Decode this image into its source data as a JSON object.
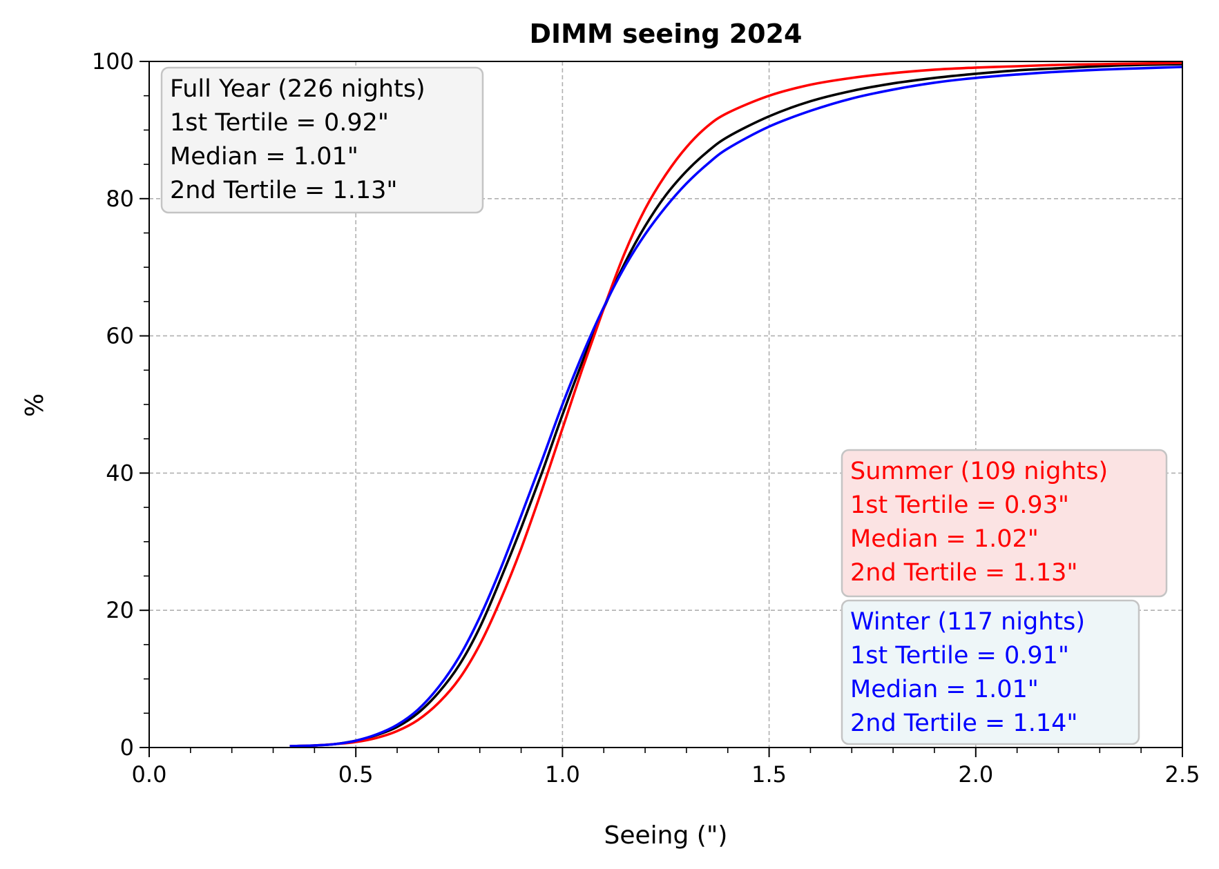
{
  "chart_data": {
    "type": "line",
    "title": "DIMM seeing 2024",
    "xlabel": "Seeing (\")",
    "ylabel": "%",
    "xlim": [
      0.0,
      2.5
    ],
    "ylim": [
      0,
      100
    ],
    "x_ticks": [
      "0.0",
      "0.5",
      "1.0",
      "1.5",
      "2.0",
      "2.5"
    ],
    "y_ticks": [
      "0",
      "20",
      "40",
      "60",
      "80",
      "100"
    ],
    "grid": true,
    "series": [
      {
        "key": "full_year",
        "color": "#000000",
        "points": [
          [
            0.34,
            0.2
          ],
          [
            0.4,
            0.3
          ],
          [
            0.45,
            0.5
          ],
          [
            0.5,
            1.0
          ],
          [
            0.55,
            1.8
          ],
          [
            0.6,
            3.0
          ],
          [
            0.65,
            5.0
          ],
          [
            0.7,
            8.0
          ],
          [
            0.75,
            12.0
          ],
          [
            0.8,
            17.5
          ],
          [
            0.85,
            24.5
          ],
          [
            0.9,
            32.0
          ],
          [
            0.95,
            40.0
          ],
          [
            1.0,
            48.5
          ],
          [
            1.05,
            56.5
          ],
          [
            1.1,
            64.0
          ],
          [
            1.15,
            70.5
          ],
          [
            1.2,
            76.0
          ],
          [
            1.25,
            80.5
          ],
          [
            1.3,
            84.0
          ],
          [
            1.35,
            86.8
          ],
          [
            1.4,
            89.0
          ],
          [
            1.5,
            92.0
          ],
          [
            1.6,
            94.2
          ],
          [
            1.7,
            95.7
          ],
          [
            1.8,
            96.8
          ],
          [
            1.9,
            97.6
          ],
          [
            2.0,
            98.2
          ],
          [
            2.1,
            98.7
          ],
          [
            2.2,
            99.0
          ],
          [
            2.3,
            99.3
          ],
          [
            2.4,
            99.5
          ],
          [
            2.5,
            99.6
          ]
        ]
      },
      {
        "key": "summer",
        "color": "#ff0000",
        "points": [
          [
            0.34,
            0.2
          ],
          [
            0.4,
            0.3
          ],
          [
            0.45,
            0.5
          ],
          [
            0.5,
            0.8
          ],
          [
            0.55,
            1.4
          ],
          [
            0.6,
            2.4
          ],
          [
            0.65,
            4.0
          ],
          [
            0.7,
            6.5
          ],
          [
            0.75,
            10.0
          ],
          [
            0.8,
            15.0
          ],
          [
            0.85,
            21.5
          ],
          [
            0.9,
            29.0
          ],
          [
            0.95,
            37.5
          ],
          [
            1.0,
            46.5
          ],
          [
            1.05,
            55.5
          ],
          [
            1.1,
            64.0
          ],
          [
            1.15,
            72.0
          ],
          [
            1.2,
            78.5
          ],
          [
            1.25,
            83.5
          ],
          [
            1.3,
            87.5
          ],
          [
            1.35,
            90.5
          ],
          [
            1.4,
            92.5
          ],
          [
            1.5,
            95.0
          ],
          [
            1.6,
            96.6
          ],
          [
            1.7,
            97.6
          ],
          [
            1.8,
            98.3
          ],
          [
            1.9,
            98.8
          ],
          [
            2.0,
            99.1
          ],
          [
            2.1,
            99.3
          ],
          [
            2.2,
            99.5
          ],
          [
            2.3,
            99.6
          ],
          [
            2.4,
            99.7
          ],
          [
            2.5,
            99.8
          ]
        ]
      },
      {
        "key": "winter",
        "color": "#0000ff",
        "points": [
          [
            0.34,
            0.2
          ],
          [
            0.4,
            0.3
          ],
          [
            0.45,
            0.5
          ],
          [
            0.5,
            1.0
          ],
          [
            0.55,
            1.9
          ],
          [
            0.6,
            3.3
          ],
          [
            0.65,
            5.5
          ],
          [
            0.7,
            8.8
          ],
          [
            0.75,
            13.2
          ],
          [
            0.8,
            19.0
          ],
          [
            0.85,
            26.0
          ],
          [
            0.9,
            33.8
          ],
          [
            0.95,
            41.8
          ],
          [
            1.0,
            50.0
          ],
          [
            1.05,
            57.5
          ],
          [
            1.1,
            64.2
          ],
          [
            1.15,
            70.0
          ],
          [
            1.2,
            74.8
          ],
          [
            1.25,
            78.8
          ],
          [
            1.3,
            82.2
          ],
          [
            1.35,
            85.0
          ],
          [
            1.4,
            87.3
          ],
          [
            1.5,
            90.5
          ],
          [
            1.6,
            92.8
          ],
          [
            1.7,
            94.6
          ],
          [
            1.8,
            95.9
          ],
          [
            1.9,
            96.9
          ],
          [
            2.0,
            97.6
          ],
          [
            2.1,
            98.1
          ],
          [
            2.2,
            98.5
          ],
          [
            2.3,
            98.8
          ],
          [
            2.4,
            99.0
          ],
          [
            2.5,
            99.2
          ]
        ]
      }
    ],
    "annotations": [
      {
        "key": "full_year",
        "position": "top-left",
        "text_color": "#000000",
        "bg_color": "#f4f4f4",
        "lines": [
          "Full Year (226 nights)",
          "1st Tertile = 0.92\"",
          "Median = 1.01\"",
          "2nd Tertile = 1.13\""
        ]
      },
      {
        "key": "summer",
        "position": "right-middle",
        "text_color": "#ff0000",
        "bg_color": "#fbe3e3",
        "lines": [
          "Summer (109 nights)",
          "1st Tertile = 0.93\"",
          "Median = 1.02\"",
          "2nd Tertile = 1.13\""
        ]
      },
      {
        "key": "winter",
        "position": "bottom-right",
        "text_color": "#0000ff",
        "bg_color": "#eef6f8",
        "lines": [
          "Winter (117 nights)",
          "1st Tertile = 0.91\"",
          "Median = 1.01\"",
          "2nd Tertile = 1.14\""
        ]
      }
    ]
  }
}
